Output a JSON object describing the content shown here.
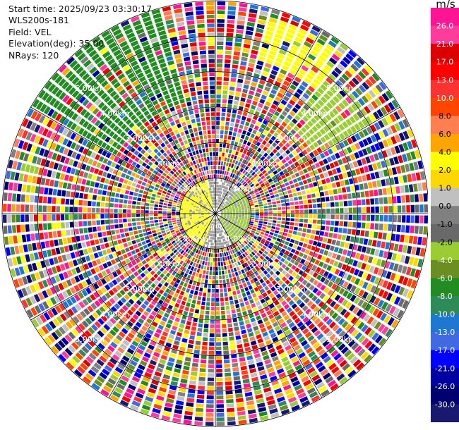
{
  "header": {
    "start_time": "Start time: 2025/09/23 03:30:17",
    "instrument": "WLS200s-181",
    "field": "Field: VEL",
    "elevation": "Elevation(deg): 35.00",
    "nrays": "NRays: 120"
  },
  "chart_data": {
    "type": "ppi",
    "field": "VEL",
    "units": "m/s",
    "max_range_km": 6.0,
    "rings_km": [
      1.0,
      2.0,
      3.0,
      4.0,
      5.0,
      6.0
    ],
    "ring_labels": [
      "1.00km",
      "2.00km",
      "3.00km",
      "4.00km",
      "5.00km"
    ],
    "nrays": 120,
    "elevation_deg": 35.0,
    "radial_lines_deg": [
      0,
      30,
      60,
      90,
      120,
      150,
      180,
      210,
      240,
      270,
      300,
      330
    ],
    "colorbar": {
      "ticks": [
        "26.0",
        "21.0",
        "17.0",
        "13.0",
        "10.0",
        "8.0",
        "6.0",
        "4.0",
        "2.0",
        "1.0",
        "0.0",
        "-1.0",
        "-2.0",
        "-4.0",
        "-6.0",
        "-8.0",
        "-10.0",
        "-13.0",
        "-17.0",
        "-21.0",
        "-26.0",
        "-30.0"
      ],
      "colors": [
        "#ff1493",
        "#ff3c9b",
        "#dc0000",
        "#ff0000",
        "#ff3232",
        "#ff4500",
        "#ff7f50",
        "#ffa500",
        "#ffff00",
        "#ffd700",
        "#c0c0c0",
        "#808080",
        "#696969",
        "#9acd32",
        "#6b8e23",
        "#228b22",
        "#2e8b57",
        "#1e78d2",
        "#4169e1",
        "#0000ff",
        "#0000a0",
        "#000070",
        "#191970"
      ]
    },
    "regions": [
      {
        "description_color": "#228b22",
        "az_from": 300,
        "az_to": 345,
        "r_from": 0.55,
        "r_to": 1.0
      },
      {
        "description_color": "#ffff00",
        "az_from": 15,
        "az_to": 40,
        "r_from": 0.75,
        "r_to": 0.95
      },
      {
        "description_color": "#9acd32",
        "az_from": 40,
        "az_to": 60,
        "r_from": 0.55,
        "r_to": 0.85
      }
    ],
    "near_field": {
      "radius_km": 1.0,
      "west_color": "#ffff00",
      "east_color": "#9acd32"
    }
  }
}
